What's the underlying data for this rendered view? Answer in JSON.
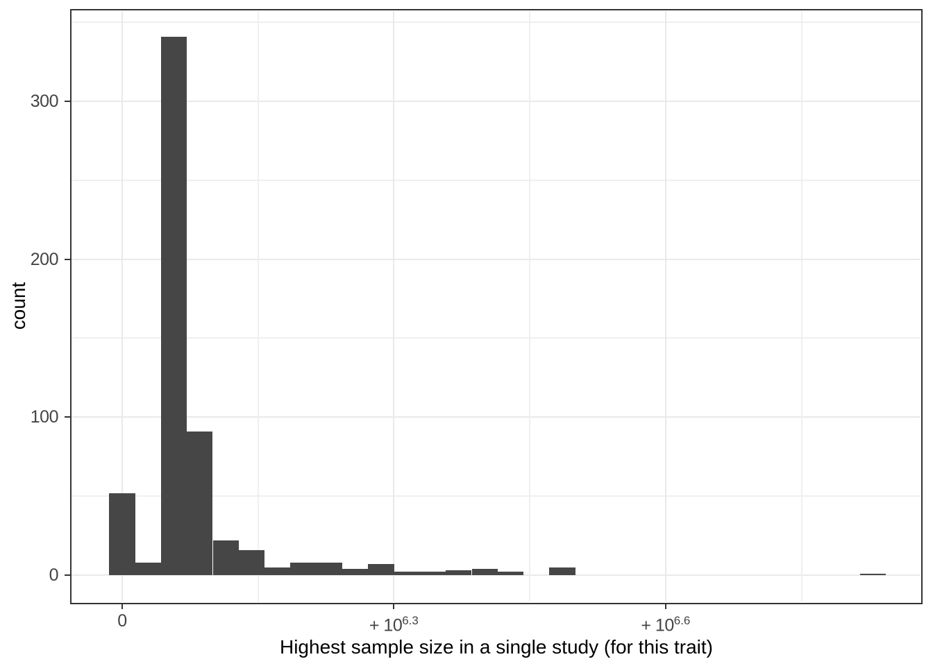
{
  "chart_data": {
    "type": "histogram",
    "title": "",
    "xlabel": "Highest sample size in a single study (for this trait)",
    "ylabel": "count",
    "bar_color": "#464646",
    "grid_color": "#e9e9e9",
    "axis_color": "#333333",
    "tick_text_color": "#444444",
    "title_text_color": "#000000",
    "background_color": "#ffffff",
    "grid": "major and minor, light gray on white panel, black panel border",
    "legend": "none",
    "x_axis_scale": "pseudo-log",
    "x_tick_labels": [
      {
        "text": "0"
      },
      {
        "text": "+ 10",
        "sup": "6.3"
      },
      {
        "text": "+ 10",
        "sup": "6.6"
      }
    ],
    "y_tick_labels": [
      "0",
      "100",
      "200",
      "300"
    ],
    "y_tick_values": [
      0,
      100,
      200,
      300
    ],
    "y_minor_tick_values": [
      50,
      150,
      250,
      350
    ],
    "ylim": [
      -17,
      358
    ],
    "bins": {
      "count_of_bins": 30,
      "first_bin_centered_on_x_tick": "0",
      "counts": [
        52,
        8,
        341,
        91,
        22,
        16,
        5,
        8,
        8,
        4,
        7,
        2,
        2,
        3,
        4,
        2,
        0,
        5,
        0,
        0,
        0,
        0,
        0,
        0,
        0,
        0,
        0,
        0,
        0,
        1
      ]
    },
    "max_bin_count": 341
  }
}
